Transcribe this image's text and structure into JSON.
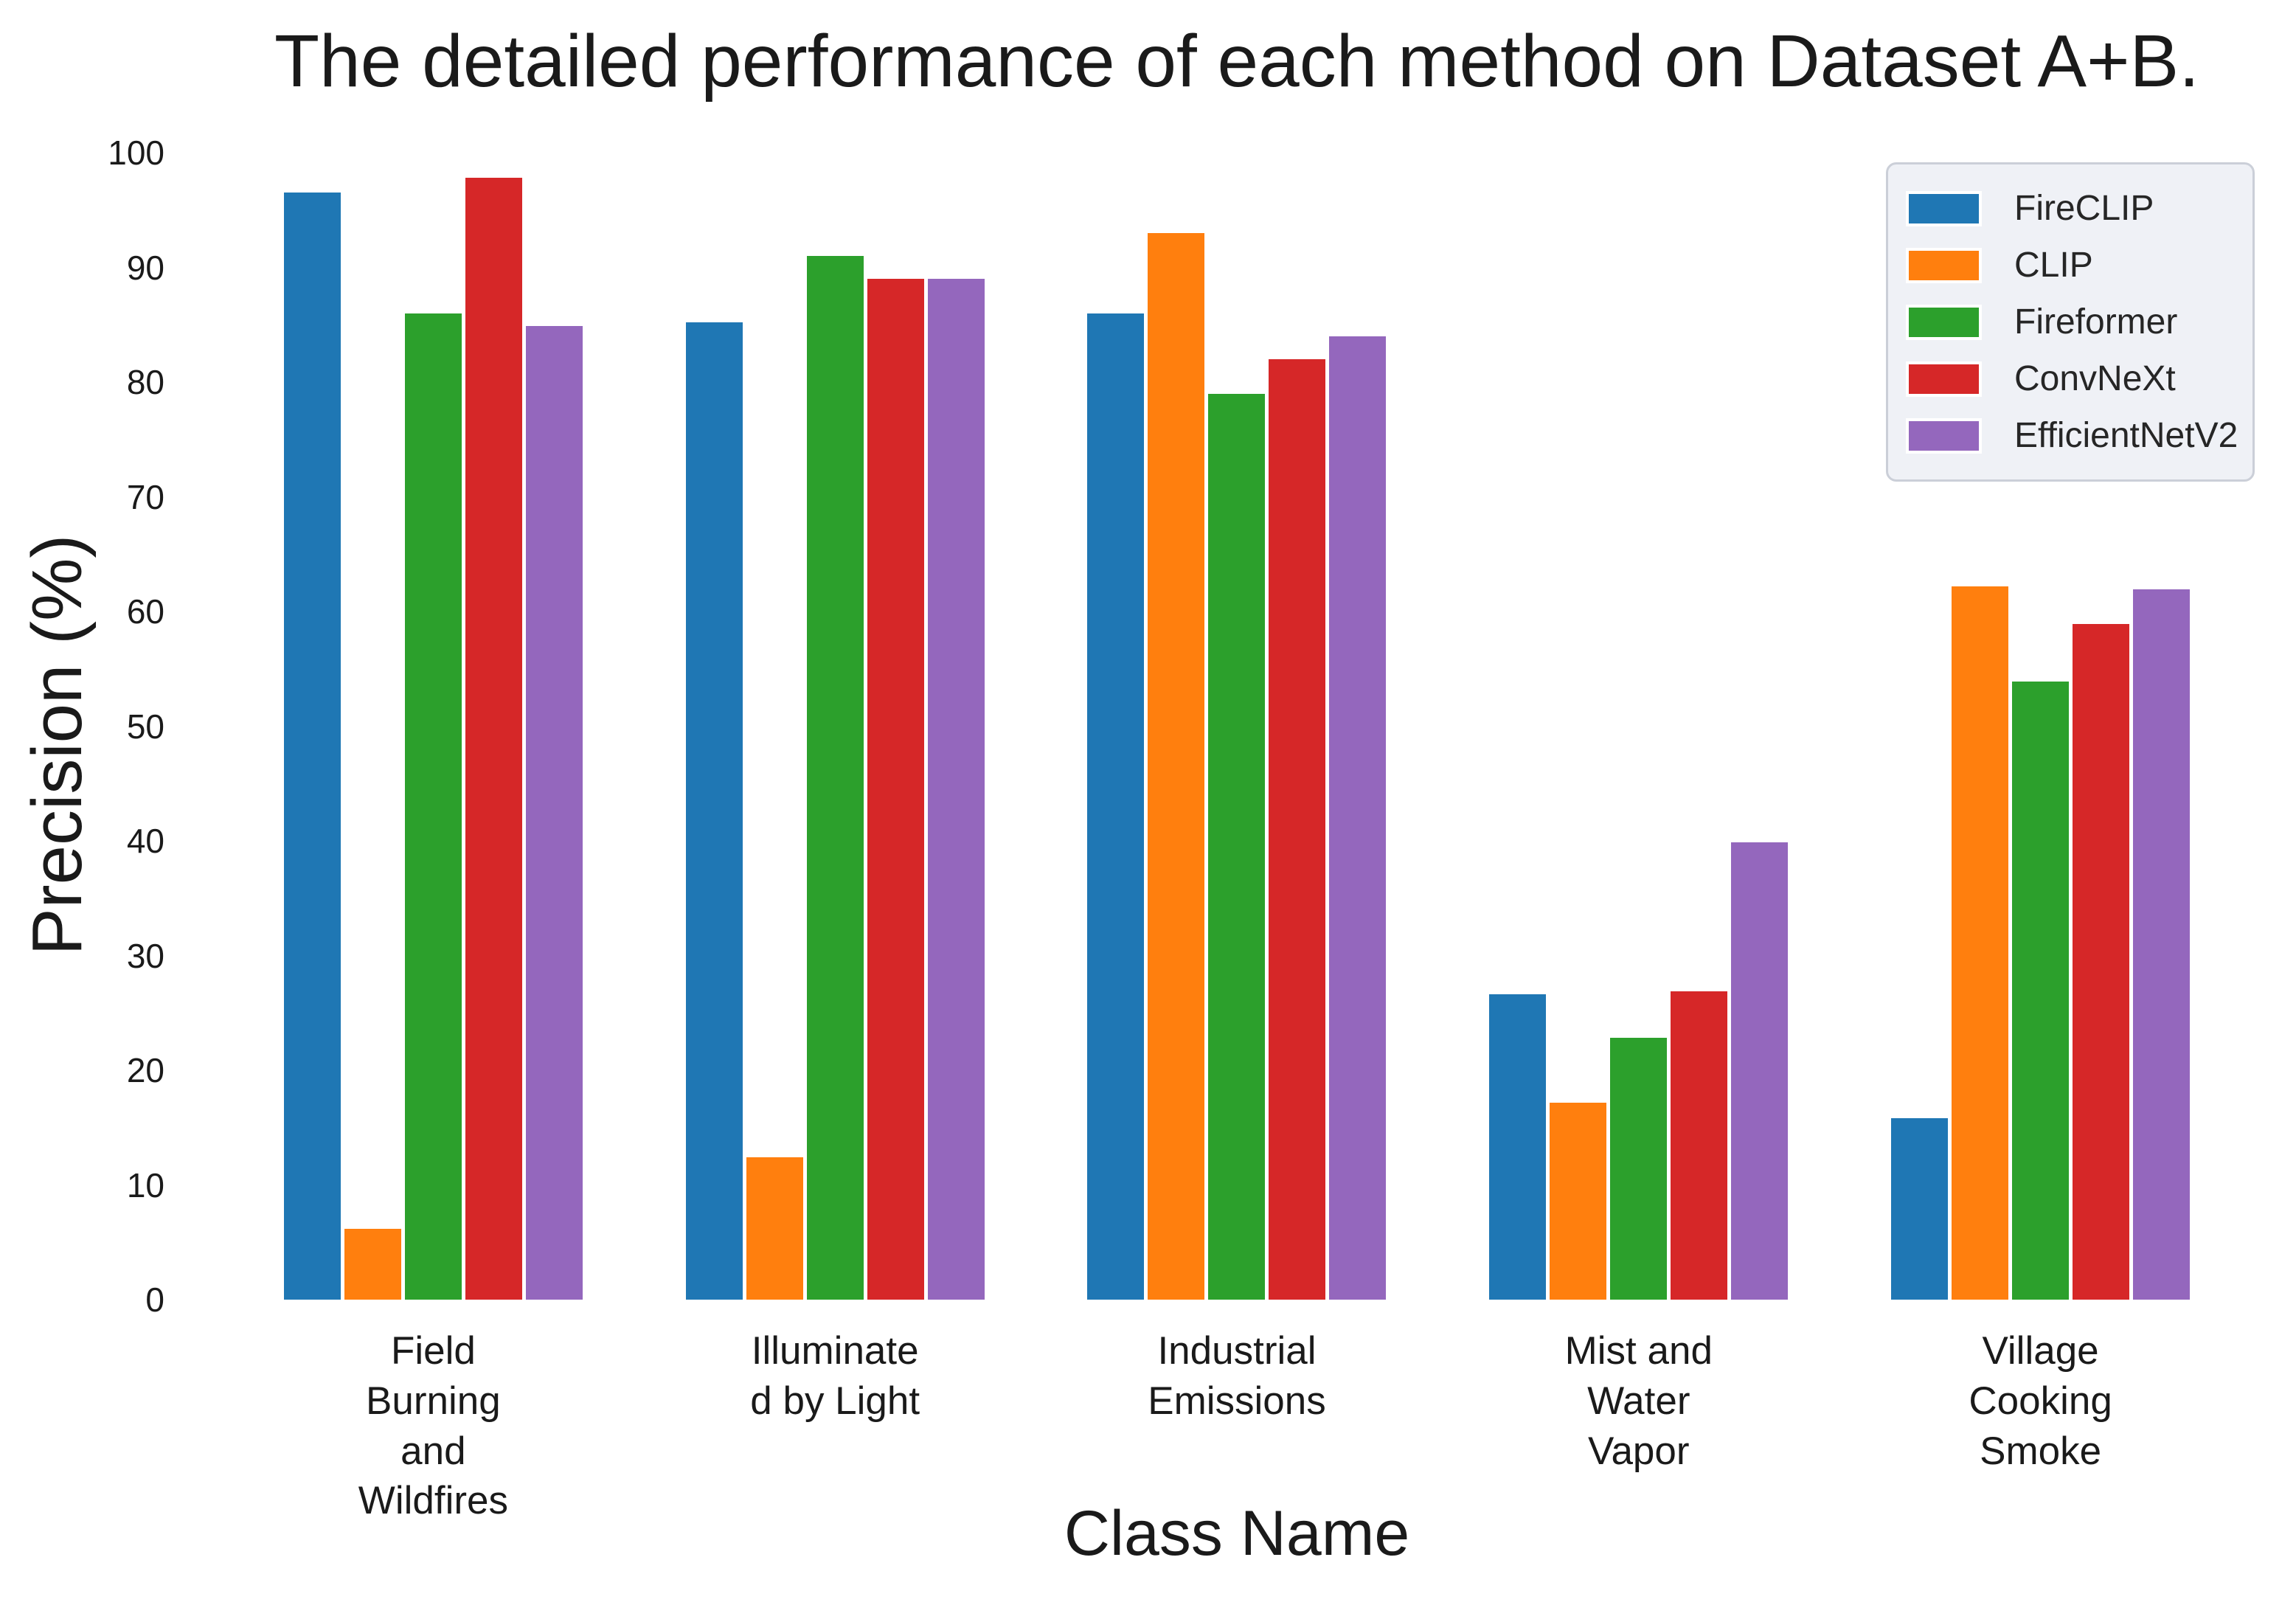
{
  "title": "The detailed performance of each method on Dataset A+B.",
  "axes": {
    "x_label": "Class Name",
    "y_label": "Precision (%)"
  },
  "chart_data": {
    "type": "bar",
    "categories": [
      "Field\nBurning\nand\nWildfires",
      "Illuminate\nd by Light",
      "Industrial\nEmissions",
      "Mist and\nWater\nVapor",
      "Village\nCooking\nSmoke"
    ],
    "series": [
      {
        "name": "FireCLIP",
        "color": "#1f77b4",
        "values": [
          96.5,
          85.2,
          86.0,
          26.6,
          15.8
        ]
      },
      {
        "name": "CLIP",
        "color": "#ff7f0e",
        "values": [
          6.2,
          12.4,
          93.0,
          17.2,
          62.2
        ]
      },
      {
        "name": "Fireformer",
        "color": "#2ca02c",
        "values": [
          86.0,
          91.0,
          79.0,
          22.8,
          53.9
        ]
      },
      {
        "name": "ConvNeXt",
        "color": "#d62728",
        "values": [
          97.8,
          89.0,
          82.0,
          26.9,
          58.9
        ]
      },
      {
        "name": "EfficientNetV2",
        "color": "#9467bd",
        "values": [
          84.9,
          89.0,
          84.0,
          39.9,
          61.9
        ]
      }
    ],
    "ylim": [
      0,
      100
    ],
    "yticks": [
      0,
      10,
      20,
      30,
      40,
      50,
      60,
      70,
      80,
      90,
      100
    ],
    "ylabel": "Precision (%)",
    "xlabel": "Class Name",
    "legend_position": "upper right",
    "grid": false,
    "background": "#ffffff",
    "legend_face_color": "#eff1f6",
    "legend_border_color": "#cbcfd8",
    "text_color": "#1a1a1a"
  }
}
